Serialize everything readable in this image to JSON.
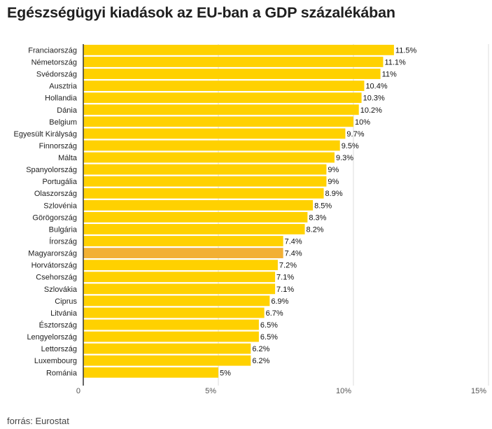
{
  "header": {
    "title": "Egészségügyi kiadások az EU-ban a GDP százalékában"
  },
  "footer": {
    "source": "forrás: Eurostat"
  },
  "colors": {
    "bar": "#FFD100",
    "highlight": "#F2B033",
    "grid": "#dddddd",
    "axis": "#333333",
    "text": "#222222"
  },
  "chart_data": {
    "type": "bar",
    "orientation": "horizontal",
    "title": "Egészségügyi kiadások az EU-ban a GDP százalékában",
    "xlabel": "",
    "ylabel": "",
    "xlim": [
      0,
      15
    ],
    "x_ticks": [
      0,
      5,
      10,
      15
    ],
    "x_tick_labels": [
      "0",
      "5%",
      "10%",
      "15%"
    ],
    "value_suffix": "%",
    "grid": true,
    "highlight_category": "Magyarország",
    "categories": [
      "Franciaország",
      "Németország",
      "Svédország",
      "Ausztria",
      "Hollandia",
      "Dánia",
      "Belgium",
      "Egyesült Királyság",
      "Finnország",
      "Málta",
      "Spanyolország",
      "Portugália",
      "Olaszország",
      "Szlovénia",
      "Görögország",
      "Bulgária",
      "Írország",
      "Magyarország",
      "Horvátország",
      "Csehország",
      "Szlovákia",
      "Ciprus",
      "Litvánia",
      "Észtország",
      "Lengyelország",
      "Lettország",
      "Luxembourg",
      "Románia"
    ],
    "values": [
      11.5,
      11.1,
      11,
      10.4,
      10.3,
      10.2,
      10,
      9.7,
      9.5,
      9.3,
      9,
      9,
      8.9,
      8.5,
      8.3,
      8.2,
      7.4,
      7.4,
      7.2,
      7.1,
      7.1,
      6.9,
      6.7,
      6.5,
      6.5,
      6.2,
      6.2,
      5
    ]
  }
}
